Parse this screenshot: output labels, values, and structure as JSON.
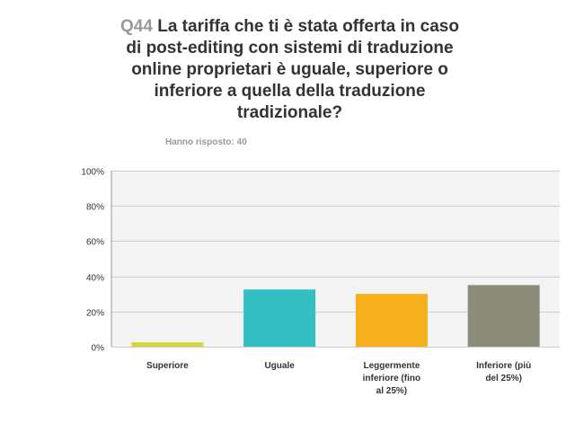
{
  "question": {
    "number": "Q44",
    "text": [
      "La tariffa che ti è stata offerta in caso",
      "di post-editing con sistemi di traduzione",
      "online proprietari è uguale, superiore o",
      "inferiore a quella della traduzione",
      "tradizionale?"
    ]
  },
  "answered": {
    "label": "Hanno risposto:",
    "count": "40"
  },
  "colors": {
    "grid": "#cccccc",
    "plot_bg": "#f4f4f4",
    "axis": "#999999"
  },
  "chart_data": {
    "type": "bar",
    "categories": [
      [
        "Superiore"
      ],
      [
        "Uguale"
      ],
      [
        "Leggermente",
        "inferiore (fino",
        "al 25%)"
      ],
      [
        "Inferiore (più",
        "del 25%)"
      ]
    ],
    "values": [
      2.5,
      32.5,
      30,
      35
    ],
    "colors": [
      "#d6d63a",
      "#33bfc2",
      "#f5b01b",
      "#8c8c7a"
    ],
    "ylim": [
      0,
      100
    ],
    "yticks": [
      "0%",
      "20%",
      "40%",
      "60%",
      "80%",
      "100%"
    ],
    "ytick_values": [
      0,
      20,
      40,
      60,
      80,
      100
    ],
    "grid": true
  }
}
